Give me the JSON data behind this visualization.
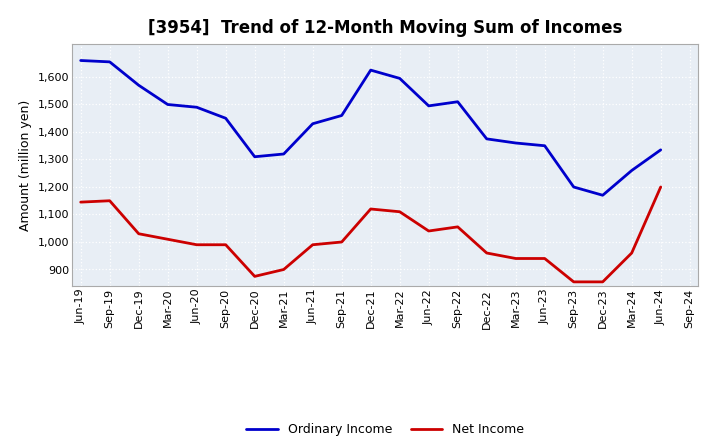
{
  "title": "[3954]  Trend of 12-Month Moving Sum of Incomes",
  "ylabel": "Amount (million yen)",
  "background_color": "#ffffff",
  "plot_background": "#e8eef5",
  "grid_color": "#ffffff",
  "x_labels": [
    "Jun-19",
    "Sep-19",
    "Dec-19",
    "Mar-20",
    "Jun-20",
    "Sep-20",
    "Dec-20",
    "Mar-21",
    "Jun-21",
    "Sep-21",
    "Dec-21",
    "Mar-22",
    "Jun-22",
    "Sep-22",
    "Dec-22",
    "Mar-23",
    "Jun-23",
    "Sep-23",
    "Dec-23",
    "Mar-24",
    "Jun-24",
    "Sep-24"
  ],
  "ordinary_income": [
    1660,
    1655,
    1570,
    1500,
    1490,
    1450,
    1310,
    1320,
    1430,
    1460,
    1625,
    1595,
    1495,
    1510,
    1375,
    1360,
    1350,
    1200,
    1170,
    1260,
    1335,
    null
  ],
  "net_income": [
    1145,
    1150,
    1030,
    1010,
    990,
    990,
    875,
    900,
    990,
    1000,
    1120,
    1110,
    1040,
    1055,
    960,
    940,
    940,
    855,
    855,
    960,
    1200,
    null
  ],
  "ylim": [
    840,
    1720
  ],
  "yticks": [
    900,
    1000,
    1100,
    1200,
    1300,
    1400,
    1500,
    1600
  ],
  "ordinary_color": "#0000cc",
  "net_color": "#cc0000",
  "line_width": 2.0,
  "title_fontsize": 12,
  "axis_fontsize": 9,
  "tick_fontsize": 8,
  "legend_fontsize": 9
}
